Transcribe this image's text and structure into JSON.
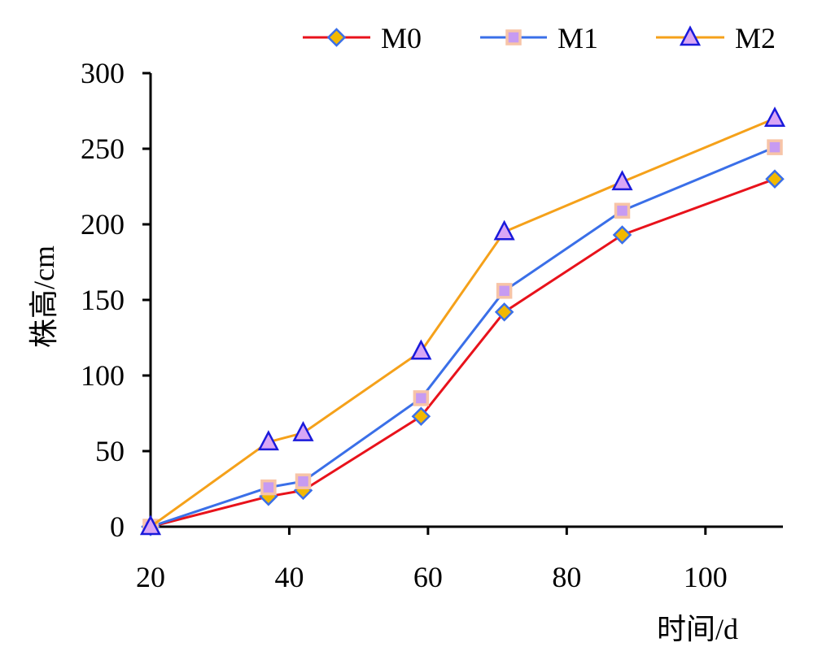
{
  "chart_data": {
    "type": "line",
    "title": "",
    "xlabel": "时间/d",
    "ylabel": "株高/cm",
    "x": [
      20,
      37,
      42,
      59,
      71,
      88,
      110
    ],
    "xlim": [
      20,
      110
    ],
    "ylim": [
      0,
      300
    ],
    "xticks": [
      20,
      40,
      60,
      80,
      100
    ],
    "yticks": [
      0,
      50,
      100,
      150,
      200,
      250,
      300
    ],
    "xtick_labels": [
      "20",
      "40",
      "60",
      "80",
      "100"
    ],
    "ytick_labels": [
      "0",
      "50",
      "100",
      "150",
      "200",
      "250",
      "300"
    ],
    "grid": false,
    "legend_position": "top",
    "series": [
      {
        "name": "M0",
        "values": [
          0,
          20,
          24,
          73,
          142,
          193,
          230
        ],
        "line_color": "#e8121b",
        "marker": "diamond",
        "marker_fill": "#f2b800",
        "marker_stroke": "#3a6fe8"
      },
      {
        "name": "M1",
        "values": [
          0,
          26,
          30,
          85,
          156,
          209,
          251
        ],
        "line_color": "#3a6fe8",
        "marker": "square",
        "marker_fill": "#c79bf2",
        "marker_stroke": "#f7c4a7"
      },
      {
        "name": "M2",
        "values": [
          0,
          56,
          62,
          116,
          195,
          228,
          270
        ],
        "line_color": "#f5a11a",
        "marker": "triangle",
        "marker_fill": "#d9a6f5",
        "marker_stroke": "#1a1adb"
      }
    ]
  }
}
